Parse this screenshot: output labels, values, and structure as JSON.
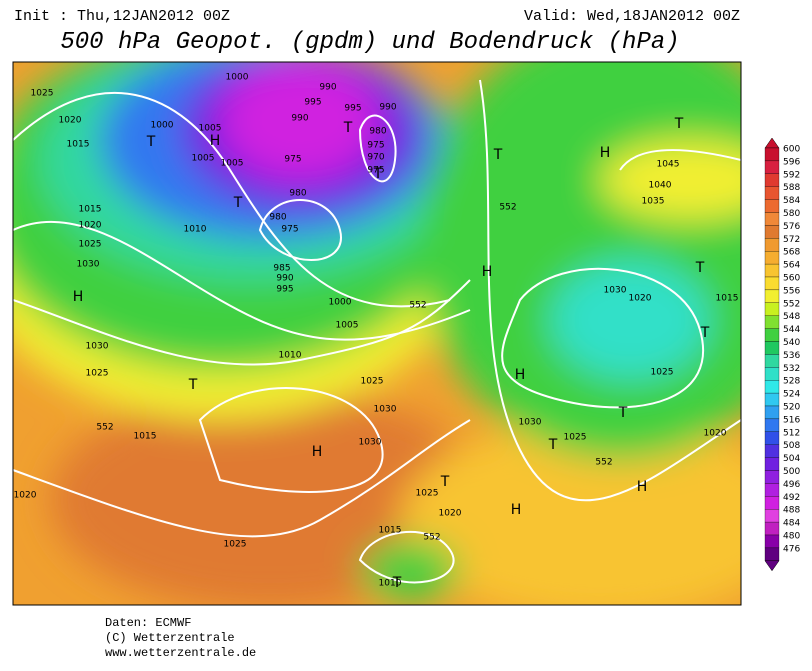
{
  "header": {
    "init": "Init : Thu,12JAN2012 00Z",
    "valid": "Valid: Wed,18JAN2012 00Z",
    "title": "500 hPa Geopot. (gpdm) und Bodendruck (hPa)"
  },
  "map": {
    "isobar_labels": [
      "1025",
      "1020",
      "1015",
      "1000",
      "1005",
      "1005",
      "1005",
      "1000",
      "990",
      "995",
      "990",
      "995",
      "990",
      "980",
      "975",
      "970",
      "975",
      "975",
      "980",
      "980",
      "975",
      "985",
      "990",
      "995",
      "1000",
      "1005",
      "1010",
      "1010",
      "1015",
      "1020",
      "1025",
      "1030",
      "1030",
      "1025",
      "1015",
      "1020",
      "1025",
      "1025",
      "1030",
      "1030",
      "1025",
      "1020",
      "1015",
      "1010",
      "1030",
      "1025",
      "1030",
      "1020",
      "1025",
      "1015",
      "1020",
      "1045",
      "1040",
      "1035",
      "552",
      "552",
      "552",
      "552",
      "552"
    ],
    "centers": [
      "H",
      "T",
      "T",
      "T",
      "T",
      "T",
      "H",
      "H",
      "H",
      "H",
      "H",
      "H",
      "H",
      "T",
      "T",
      "T",
      "T",
      "T",
      "T",
      "T",
      "T"
    ]
  },
  "colorbar": {
    "levels": [
      600,
      596,
      592,
      588,
      584,
      580,
      576,
      572,
      568,
      564,
      560,
      556,
      552,
      548,
      544,
      540,
      536,
      532,
      528,
      524,
      520,
      516,
      512,
      508,
      504,
      500,
      496,
      492,
      488,
      484,
      480,
      476
    ],
    "colors": [
      "#c8102e",
      "#d82040",
      "#e03a30",
      "#e85530",
      "#ec6a30",
      "#f08838",
      "#e07a30",
      "#f09a30",
      "#f5ad30",
      "#f8c430",
      "#fadc30",
      "#f2ef30",
      "#c8f020",
      "#80e030",
      "#40d040",
      "#20c860",
      "#30d8a0",
      "#30e0c8",
      "#30e8e8",
      "#30c8f0",
      "#30a0f0",
      "#3078f0",
      "#3050e8",
      "#5030e0",
      "#7020e0",
      "#9020e0",
      "#b020e0",
      "#d020e0",
      "#e040e0",
      "#c020c0",
      "#8800a8",
      "#600080"
    ]
  },
  "footer": [
    "Daten: ECMWF",
    "(C) Wetterzentrale",
    "www.wetterzentrale.de"
  ]
}
